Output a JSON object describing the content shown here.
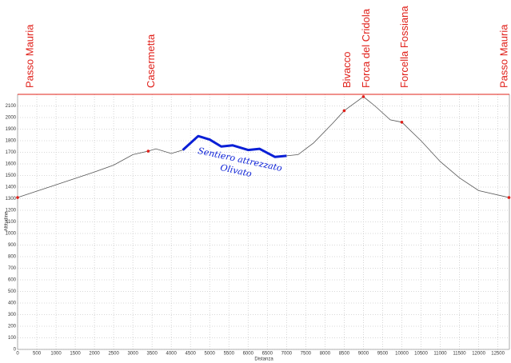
{
  "chart_data": {
    "type": "line",
    "x_label": "Distanza",
    "y_label": "Altitudine",
    "x": [
      0,
      1000,
      2000,
      2500,
      3000,
      3400,
      3600,
      4000,
      4300,
      4700,
      5000,
      5300,
      5600,
      6000,
      6300,
      6700,
      7000,
      7300,
      7700,
      8200,
      8500,
      9000,
      9300,
      9700,
      10000,
      10500,
      11000,
      11500,
      12000,
      12790
    ],
    "values": [
      1310,
      1420,
      1530,
      1590,
      1680,
      1710,
      1730,
      1690,
      1720,
      1840,
      1810,
      1750,
      1760,
      1720,
      1730,
      1660,
      1670,
      1680,
      1780,
      1950,
      2059,
      2180,
      2100,
      1980,
      1960,
      1800,
      1620,
      1480,
      1370,
      1310
    ],
    "color": "#555555",
    "highlight_range": [
      4300,
      7000
    ],
    "highlight_color": "#0a1fd6",
    "annotations": [
      "Sentiero attrezzato",
      "Olivato"
    ],
    "waypoints": [
      {
        "label": "Passo Mauria",
        "x": 0,
        "value": 1310
      },
      {
        "label": "Casermetta",
        "x": 3400,
        "value": 1710
      },
      {
        "label": "Bivacco",
        "x": 8500,
        "value": 2059
      },
      {
        "label": "Forca del Cridola",
        "x": 9000,
        "value": 2180
      },
      {
        "label": "Forcella Fossiana",
        "x": 10000,
        "value": 1960
      },
      {
        "label": "Passo Mauria",
        "x": 12790,
        "value": 1310
      }
    ],
    "waypoint_color": "#e0201a",
    "xlim": [
      0,
      12800
    ],
    "ylim": [
      0,
      2200
    ],
    "xticks": [
      0,
      500,
      1000,
      1500,
      2000,
      2500,
      3000,
      3500,
      4000,
      4500,
      5000,
      5500,
      6000,
      6500,
      7000,
      7500,
      8000,
      8500,
      9000,
      9500,
      10000,
      10500,
      11000,
      11500,
      12000,
      12500
    ],
    "yticks": [
      0,
      100,
      200,
      300,
      400,
      500,
      600,
      700,
      800,
      900,
      1000,
      1100,
      1200,
      1300,
      1400,
      1500,
      1600,
      1700,
      1800,
      1900,
      2000,
      2100
    ],
    "grid": true
  }
}
